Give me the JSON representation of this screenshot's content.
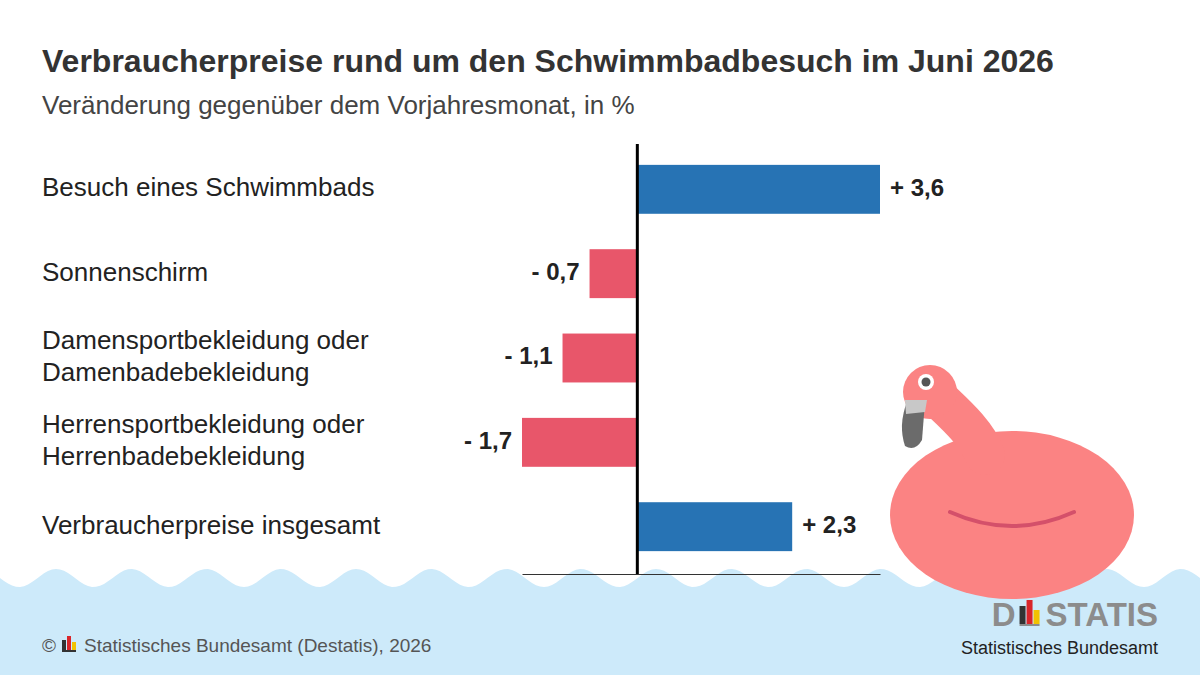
{
  "chart_data": {
    "type": "bar",
    "orientation": "horizontal",
    "title": "Verbraucherpreise rund um den Schwimmbadbesuch im Juni 2026",
    "subtitle": "Veränderung gegenüber dem Vorjahresmonat, in %",
    "categories": [
      "Besuch eines Schwimmbads",
      "Sonnenschirm",
      "Damensportbekleidung oder Damenbadebekleidung",
      "Herrensportbekleidung oder Herrenbadebekleidung",
      "Verbraucherpreise insgesamt"
    ],
    "values": [
      3.6,
      -0.7,
      -1.1,
      -1.7,
      2.3
    ],
    "value_labels": [
      "+ 3,6",
      "- 0,7",
      "- 1,1",
      "- 1,7",
      "+ 2,3"
    ],
    "colors": [
      "#2773b4",
      "#e8566a",
      "#e8566a",
      "#e8566a",
      "#2773b4"
    ],
    "xlim": [
      -1.7,
      3.6
    ],
    "xticks": [
      0
    ],
    "tick_labels": false,
    "grid": false,
    "data_labels": true
  },
  "footer": {
    "copyright": "©",
    "source": "Statistisches Bundesamt (Destatis), 2026",
    "logo_left": "D",
    "logo_right": "STATIS",
    "logo_caption": "Statistisches Bundesamt"
  }
}
